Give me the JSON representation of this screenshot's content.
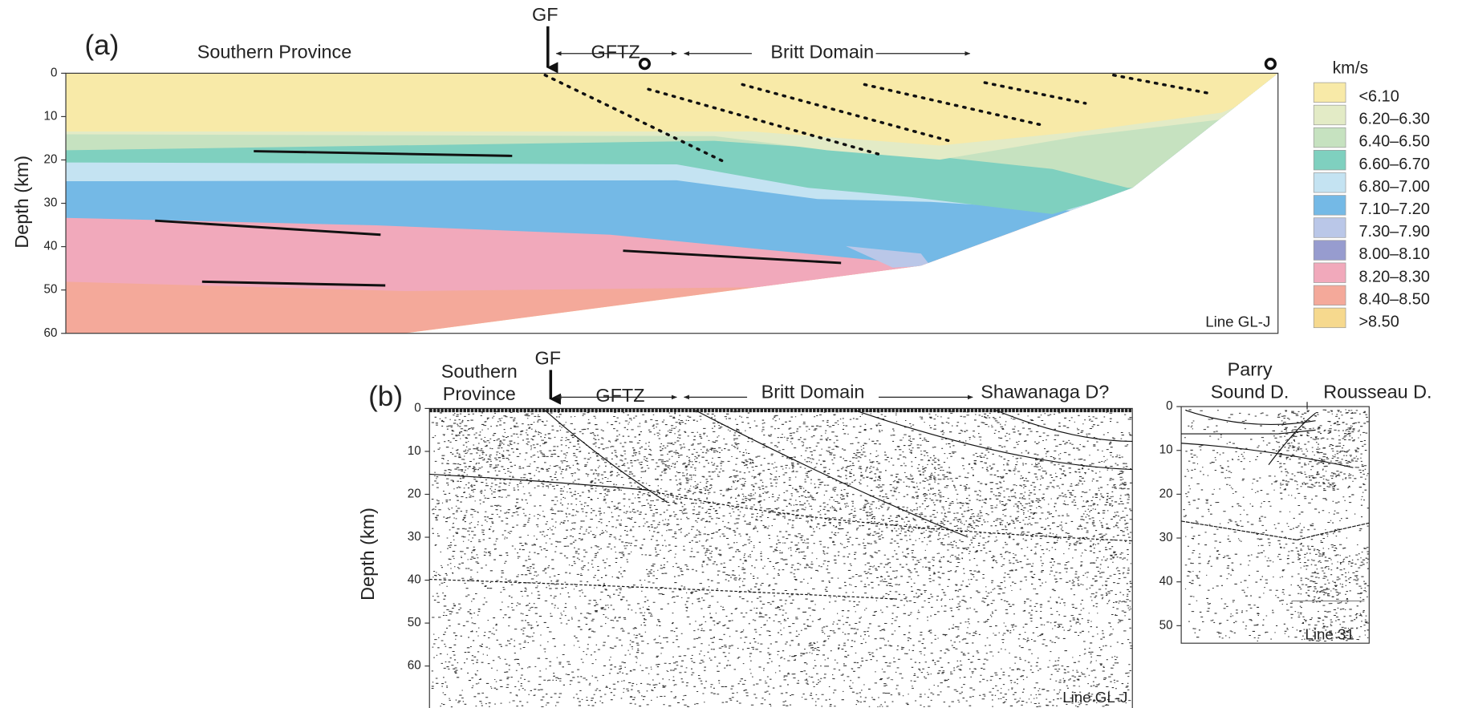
{
  "panel_a": {
    "label": "(a)",
    "y_axis_label": "Depth (km)",
    "ylim": [
      0,
      60
    ],
    "yticks": [
      0,
      10,
      20,
      30,
      40,
      50,
      60
    ],
    "southern_province": "Southern Province",
    "gf": "GF",
    "gftz": "GFTZ",
    "britt_domain": "Britt Domain",
    "line": "Line GL-J"
  },
  "legend": {
    "title": "km/s",
    "items": [
      {
        "label": "<6.10",
        "color": "#f8eaa8"
      },
      {
        "label": "6.20–6.30",
        "color": "#e3ebc6"
      },
      {
        "label": "6.40–6.50",
        "color": "#c6e2c0"
      },
      {
        "label": "6.60–6.70",
        "color": "#7fd0bf"
      },
      {
        "label": "6.80–7.00",
        "color": "#c4e3f2"
      },
      {
        "label": "7.10–7.20",
        "color": "#74b9e6"
      },
      {
        "label": "7.30–7.90",
        "color": "#bac7e8"
      },
      {
        "label": "8.00–8.10",
        "color": "#979ccf"
      },
      {
        "label": "8.20–8.30",
        "color": "#f1a9bb"
      },
      {
        "label": "8.40–8.50",
        "color": "#f4a99a"
      },
      {
        "label": ">8.50",
        "color": "#f6d98e"
      }
    ]
  },
  "panel_b": {
    "label": "(b)",
    "y_axis_label": "Depth (km)",
    "ylim": [
      0,
      70
    ],
    "yticks": [
      0,
      10,
      20,
      30,
      40,
      50,
      60
    ],
    "southern_province": [
      "Southern",
      "Province"
    ],
    "gf": "GF",
    "gftz": "GFTZ",
    "britt_domain": "Britt Domain",
    "shawanaga": "Shawanaga D?",
    "line": "Line GL-J"
  },
  "panel_c": {
    "ylim": [
      0,
      54
    ],
    "yticks": [
      0,
      10,
      20,
      30,
      40,
      50
    ],
    "parry_sound": [
      "Parry",
      "Sound D."
    ],
    "rousseau": "Rousseau D.",
    "line": "Line 31"
  }
}
